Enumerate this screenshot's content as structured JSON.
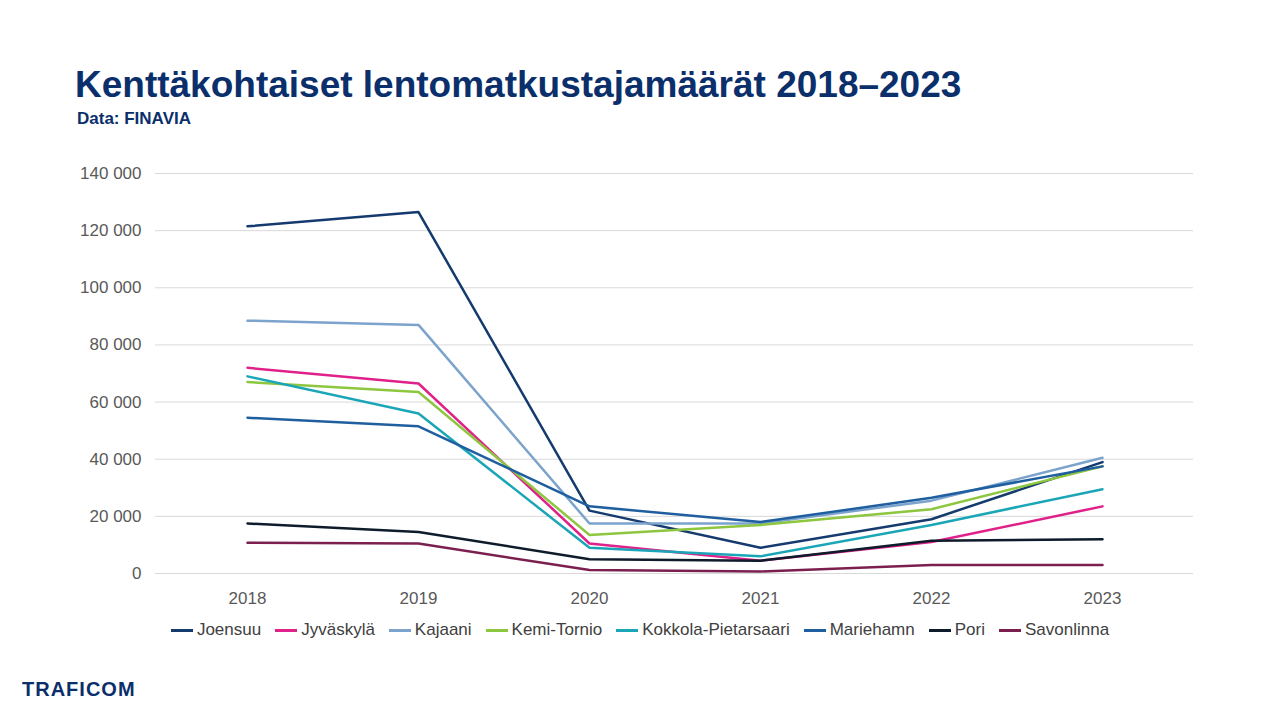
{
  "chart_data": {
    "type": "line",
    "title": "Kenttäkohtaiset lentomatkustajamäärät 2018–2023",
    "subtitle": "Data: FINAVIA",
    "logo": "TRAFICOM",
    "categories": [
      "2018",
      "2019",
      "2020",
      "2021",
      "2022",
      "2023"
    ],
    "series": [
      {
        "name": "Joensuu",
        "color": "#143a6e",
        "values": [
          121500,
          126500,
          22000,
          9000,
          19000,
          39000
        ]
      },
      {
        "name": "Jyväskylä",
        "color": "#e0218a",
        "values": [
          72000,
          66500,
          10500,
          4500,
          11000,
          23500
        ]
      },
      {
        "name": "Kajaani",
        "color": "#7ba3cc",
        "values": [
          88500,
          87000,
          17500,
          17500,
          25500,
          40500
        ]
      },
      {
        "name": "Kemi-Tornio",
        "color": "#8dc63f",
        "values": [
          67000,
          63500,
          13500,
          17000,
          22500,
          37500
        ]
      },
      {
        "name": "Kokkola-Pietarsaari",
        "color": "#1aa6b7",
        "values": [
          69000,
          56000,
          9000,
          6000,
          17000,
          29500
        ]
      },
      {
        "name": "Mariehamn",
        "color": "#1f5fa0",
        "values": [
          54500,
          51500,
          23500,
          18000,
          26500,
          37500
        ]
      },
      {
        "name": "Pori",
        "color": "#0d1b2a",
        "values": [
          17500,
          14500,
          5000,
          4500,
          11500,
          12000
        ]
      },
      {
        "name": "Savonlinna",
        "color": "#7b1f4f",
        "values": [
          10800,
          10500,
          1200,
          700,
          3000,
          3000
        ]
      }
    ],
    "ylim": [
      0,
      140000
    ],
    "yticks": [
      0,
      {
        "value": 20000,
        "label": "20 000"
      },
      {
        "value": 40000,
        "label": "40 000"
      },
      {
        "value": 60000,
        "label": "60 000"
      },
      {
        "value": 80000,
        "label": "80 000"
      },
      {
        "value": 100000,
        "label": "100 000"
      },
      {
        "value": 120000,
        "label": "120 000"
      },
      {
        "value": 140000,
        "label": "140 000"
      }
    ],
    "grid": true,
    "legend": "bottom"
  }
}
